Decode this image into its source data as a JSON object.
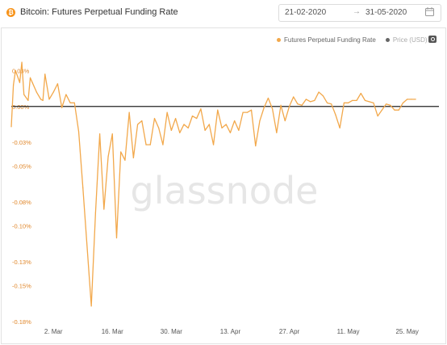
{
  "header": {
    "icon_glyph": "₿",
    "title": "Bitcoin: Futures Perpetual Funding Rate",
    "date_start": "21-02-2020",
    "date_arrow": "→",
    "date_end": "31-05-2020",
    "calendar_icon": "calendar-icon"
  },
  "legend": {
    "series_label": "Futures Perpetual Funding Rate",
    "series_color": "#f2a84b",
    "price_label": "Price (USD)",
    "price_color": "#666666",
    "camera_icon": "camera-icon"
  },
  "watermark": "glassnode",
  "chart_data": {
    "type": "line",
    "title": "Bitcoin: Futures Perpetual Funding Rate",
    "x_unit": "date",
    "x_range": [
      "2020-02-21",
      "2020-05-31"
    ],
    "y_unit": "%",
    "ylim": [
      -0.18,
      0.035
    ],
    "y_ticks": [
      0.03,
      0.0,
      -0.03,
      -0.05,
      -0.08,
      -0.1,
      -0.13,
      -0.15,
      -0.18
    ],
    "y_tick_labels": [
      "0.03%",
      "0.00%",
      "-0.03%",
      "-0.05%",
      "-0.08%",
      "-0.10%",
      "-0.13%",
      "-0.15%",
      "-0.18%"
    ],
    "x_ticks": [
      "2020-03-02",
      "2020-03-16",
      "2020-03-30",
      "2020-04-13",
      "2020-04-27",
      "2020-05-11",
      "2020-05-25"
    ],
    "x_tick_labels": [
      "2. Mar",
      "16. Mar",
      "30. Mar",
      "13. Apr",
      "27. Apr",
      "11. May",
      "25. May"
    ],
    "zero_line": true,
    "grid": false,
    "legend_position": "top-right",
    "series": [
      {
        "name": "Futures Perpetual Funding Rate",
        "color": "#f2a84b",
        "points": [
          [
            "2020-02-21",
            -0.017
          ],
          [
            "2020-02-21",
            0.018
          ],
          [
            "2020-02-22",
            0.03
          ],
          [
            "2020-02-23",
            0.02
          ],
          [
            "2020-02-23",
            0.037
          ],
          [
            "2020-02-24",
            0.01
          ],
          [
            "2020-02-25",
            0.005
          ],
          [
            "2020-02-25",
            0.024
          ],
          [
            "2020-02-26",
            0.02
          ],
          [
            "2020-02-27",
            0.012
          ],
          [
            "2020-02-28",
            0.006
          ],
          [
            "2020-02-28",
            0.005
          ],
          [
            "2020-02-29",
            0.027
          ],
          [
            "2020-03-01",
            0.006
          ],
          [
            "2020-03-02",
            0.012
          ],
          [
            "2020-03-03",
            0.019
          ],
          [
            "2020-03-04",
            -0.001
          ],
          [
            "2020-03-05",
            0.01
          ],
          [
            "2020-03-06",
            0.003
          ],
          [
            "2020-03-07",
            0.003
          ],
          [
            "2020-03-08",
            -0.021
          ],
          [
            "2020-03-09",
            -0.068
          ],
          [
            "2020-03-11",
            -0.167
          ],
          [
            "2020-03-12",
            -0.089
          ],
          [
            "2020-03-13",
            -0.023
          ],
          [
            "2020-03-14",
            -0.086
          ],
          [
            "2020-03-15",
            -0.042
          ],
          [
            "2020-03-16",
            -0.023
          ],
          [
            "2020-03-17",
            -0.11
          ],
          [
            "2020-03-18",
            -0.038
          ],
          [
            "2020-03-19",
            -0.045
          ],
          [
            "2020-03-20",
            -0.005
          ],
          [
            "2020-03-21",
            -0.043
          ],
          [
            "2020-03-22",
            -0.015
          ],
          [
            "2020-03-23",
            -0.012
          ],
          [
            "2020-03-24",
            -0.032
          ],
          [
            "2020-03-25",
            -0.032
          ],
          [
            "2020-03-26",
            -0.01
          ],
          [
            "2020-03-27",
            -0.018
          ],
          [
            "2020-03-28",
            -0.032
          ],
          [
            "2020-03-29",
            -0.005
          ],
          [
            "2020-03-30",
            -0.02
          ],
          [
            "2020-03-31",
            -0.01
          ],
          [
            "2020-04-01",
            -0.022
          ],
          [
            "2020-04-02",
            -0.015
          ],
          [
            "2020-04-03",
            -0.018
          ],
          [
            "2020-04-04",
            -0.008
          ],
          [
            "2020-04-05",
            -0.01
          ],
          [
            "2020-04-06",
            -0.002
          ],
          [
            "2020-04-07",
            -0.02
          ],
          [
            "2020-04-08",
            -0.015
          ],
          [
            "2020-04-09",
            -0.032
          ],
          [
            "2020-04-10",
            -0.003
          ],
          [
            "2020-04-11",
            -0.018
          ],
          [
            "2020-04-12",
            -0.015
          ],
          [
            "2020-04-13",
            -0.022
          ],
          [
            "2020-04-14",
            -0.012
          ],
          [
            "2020-04-15",
            -0.02
          ],
          [
            "2020-04-16",
            -0.005
          ],
          [
            "2020-04-17",
            -0.005
          ],
          [
            "2020-04-18",
            -0.003
          ],
          [
            "2020-04-19",
            -0.033
          ],
          [
            "2020-04-20",
            -0.012
          ],
          [
            "2020-04-21",
            -0.001
          ],
          [
            "2020-04-22",
            0.007
          ],
          [
            "2020-04-23",
            -0.002
          ],
          [
            "2020-04-24",
            -0.022
          ],
          [
            "2020-04-25",
            0.001
          ],
          [
            "2020-04-26",
            -0.012
          ],
          [
            "2020-04-27",
            0.0
          ],
          [
            "2020-04-28",
            0.008
          ],
          [
            "2020-04-29",
            0.002
          ],
          [
            "2020-04-30",
            0.001
          ],
          [
            "2020-05-01",
            0.006
          ],
          [
            "2020-05-02",
            0.004
          ],
          [
            "2020-05-03",
            0.005
          ],
          [
            "2020-05-04",
            0.012
          ],
          [
            "2020-05-05",
            0.009
          ],
          [
            "2020-05-06",
            0.003
          ],
          [
            "2020-05-07",
            0.002
          ],
          [
            "2020-05-08",
            -0.007
          ],
          [
            "2020-05-09",
            -0.018
          ],
          [
            "2020-05-10",
            0.003
          ],
          [
            "2020-05-11",
            0.003
          ],
          [
            "2020-05-12",
            0.005
          ],
          [
            "2020-05-13",
            0.005
          ],
          [
            "2020-05-14",
            0.011
          ],
          [
            "2020-05-15",
            0.005
          ],
          [
            "2020-05-16",
            0.004
          ],
          [
            "2020-05-17",
            0.003
          ],
          [
            "2020-05-18",
            -0.008
          ],
          [
            "2020-05-19",
            -0.003
          ],
          [
            "2020-05-20",
            0.002
          ],
          [
            "2020-05-21",
            0.001
          ],
          [
            "2020-05-22",
            -0.003
          ],
          [
            "2020-05-23",
            -0.003
          ],
          [
            "2020-05-24",
            0.003
          ],
          [
            "2020-05-25",
            0.006
          ],
          [
            "2020-05-26",
            0.006
          ],
          [
            "2020-05-27",
            0.006
          ]
        ]
      }
    ]
  }
}
